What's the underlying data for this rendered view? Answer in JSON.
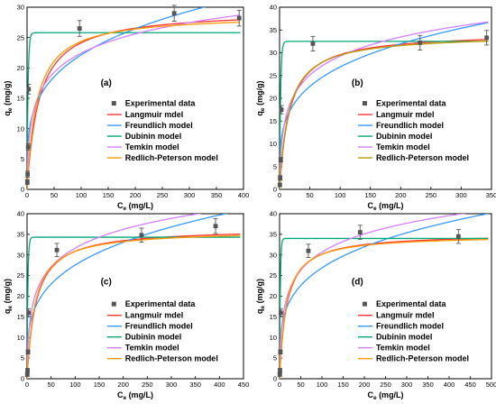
{
  "chart_data": [
    {
      "type": "line",
      "panel_label": "(a)",
      "xlabel": "C",
      "xlabel_sub": "e",
      "xlabel_unit": " (mg/L)",
      "ylabel": "q",
      "ylabel_sub": "e",
      "ylabel_unit": " (mg/g)",
      "xlim": [
        0,
        400
      ],
      "ylim": [
        0,
        30
      ],
      "xticks": [
        0,
        50,
        100,
        150,
        200,
        250,
        300,
        350,
        400
      ],
      "yticks": [
        0,
        5,
        10,
        15,
        20,
        25,
        30
      ],
      "legend_position": "center-right",
      "experimental": {
        "name": "Experimental data",
        "x": [
          0.5,
          1,
          2,
          3,
          97,
          272,
          392
        ],
        "y": [
          1.2,
          2.5,
          7,
          16.5,
          26.5,
          29,
          28.2
        ],
        "err": [
          0.4,
          0.5,
          0.5,
          0.8,
          1.3,
          1.3,
          1.3
        ]
      },
      "series": [
        {
          "name": "Langmuir mdel",
          "color": "#ff3333",
          "model": "langmuir",
          "qm": 29.5,
          "k": 0.045
        },
        {
          "name": "Freundlich model",
          "color": "#3399ff",
          "model": "freundlich",
          "kf": 6.8,
          "n": 3.9
        },
        {
          "name": "Dubinin model",
          "color": "#00a878",
          "model": "dubinin",
          "qm": 25.8,
          "k": 0.55
        },
        {
          "name": "Temkin model",
          "color": "#d47fff",
          "model": "temkin",
          "a": 1.3,
          "b": 4.6
        },
        {
          "name": "Redlich-Peterson model",
          "color": "#ff9900",
          "model": "langmuir",
          "qm": 28.8,
          "k": 0.055
        }
      ]
    },
    {
      "type": "line",
      "panel_label": "(b)",
      "xlabel": "C",
      "xlabel_sub": "e",
      "xlabel_unit": " (mg/L)",
      "ylabel": "q",
      "ylabel_sub": "e",
      "ylabel_unit": " (mg/g)",
      "xlim": [
        0,
        350
      ],
      "ylim": [
        0,
        40
      ],
      "xticks": [
        0,
        50,
        100,
        150,
        200,
        250,
        300,
        350
      ],
      "yticks": [
        0,
        5,
        10,
        15,
        20,
        25,
        30,
        35,
        40
      ],
      "legend_position": "center-right",
      "experimental": {
        "name": "Experimental data",
        "x": [
          0.5,
          1,
          2,
          3,
          55,
          232,
          342
        ],
        "y": [
          1,
          2.5,
          6.5,
          17.5,
          32,
          32.2,
          33.3
        ],
        "err": [
          0.4,
          0.5,
          0.5,
          0.9,
          1.6,
          1.6,
          1.6
        ]
      },
      "series": [
        {
          "name": "Langmuir mdel",
          "color": "#ff3333",
          "model": "langmuir",
          "qm": 34.5,
          "k": 0.06
        },
        {
          "name": "Freundlich model",
          "color": "#3399ff",
          "model": "freundlich",
          "kf": 8.5,
          "n": 4.0
        },
        {
          "name": "Dubinin model",
          "color": "#00a878",
          "model": "dubinin",
          "qm": 32.5,
          "k": 0.6
        },
        {
          "name": "Temkin model",
          "color": "#d47fff",
          "model": "temkin",
          "a": 1.2,
          "b": 6.1
        },
        {
          "name": "Redlich-Peterson model",
          "color": "#bb9900",
          "model": "langmuir",
          "qm": 34.0,
          "k": 0.065
        }
      ]
    },
    {
      "type": "line",
      "panel_label": "(c)",
      "xlabel": "C",
      "xlabel_sub": "e",
      "xlabel_unit": " (mg/L)",
      "ylabel": "q",
      "ylabel_sub": "e",
      "ylabel_unit": " (mg/g)",
      "xlim": [
        0,
        450
      ],
      "ylim": [
        0,
        40
      ],
      "xticks": [
        0,
        50,
        100,
        150,
        200,
        250,
        300,
        350,
        400,
        450
      ],
      "yticks": [
        0,
        5,
        10,
        15,
        20,
        25,
        30,
        35,
        40
      ],
      "legend_position": "bottom-right",
      "experimental": {
        "name": "Experimental data",
        "x": [
          0.5,
          1,
          2,
          3,
          62,
          238,
          392
        ],
        "y": [
          1,
          2,
          6.5,
          16,
          31.2,
          34.8,
          37
        ],
        "err": [
          0.4,
          0.5,
          0.5,
          0.9,
          1.6,
          1.7,
          1.8
        ]
      },
      "series": [
        {
          "name": "Langmuir mdel",
          "color": "#ff3333",
          "model": "langmuir",
          "qm": 36.5,
          "k": 0.055
        },
        {
          "name": "Freundlich model",
          "color": "#3399ff",
          "model": "freundlich",
          "kf": 8.2,
          "n": 3.8
        },
        {
          "name": "Dubinin model",
          "color": "#00a878",
          "model": "dubinin",
          "qm": 34.3,
          "k": 0.6
        },
        {
          "name": "Temkin model",
          "color": "#d47fff",
          "model": "temkin",
          "a": 1.2,
          "b": 6.6
        },
        {
          "name": "Redlich-Peterson model",
          "color": "#ff9900",
          "model": "langmuir",
          "qm": 36.0,
          "k": 0.06
        }
      ]
    },
    {
      "type": "line",
      "panel_label": "(d)",
      "xlabel": "C",
      "xlabel_sub": "e",
      "xlabel_unit": " (mg/L)",
      "ylabel": "q",
      "ylabel_sub": "e",
      "ylabel_unit": " (mg/g)",
      "xlim": [
        0,
        500
      ],
      "ylim": [
        0,
        40
      ],
      "xticks": [
        0,
        50,
        100,
        150,
        200,
        250,
        300,
        350,
        400,
        450,
        500
      ],
      "yticks": [
        0,
        5,
        10,
        15,
        20,
        25,
        30,
        35,
        40
      ],
      "legend_position": "bottom-right",
      "experimental": {
        "name": "Experimental data",
        "x": [
          0.5,
          1,
          2,
          3,
          68,
          190,
          422
        ],
        "y": [
          1,
          2,
          6.5,
          16,
          31,
          35.5,
          34.5
        ],
        "err": [
          0.4,
          0.5,
          0.5,
          0.9,
          1.6,
          1.7,
          1.7
        ]
      },
      "series": [
        {
          "name": "Langmuir mdel",
          "color": "#ff3333",
          "model": "langmuir",
          "qm": 35.2,
          "k": 0.06
        },
        {
          "name": "Freundlich model",
          "color": "#3399ff",
          "model": "freundlich",
          "kf": 8.5,
          "n": 4.0
        },
        {
          "name": "Dubinin model",
          "color": "#00a878",
          "model": "dubinin",
          "qm": 34.0,
          "k": 0.6
        },
        {
          "name": "Temkin model",
          "color": "#d47fff",
          "model": "temkin",
          "a": 1.2,
          "b": 6.4
        },
        {
          "name": "Redlich-Peterson model",
          "color": "#ff9900",
          "model": "langmuir",
          "qm": 34.8,
          "k": 0.065
        }
      ]
    }
  ]
}
